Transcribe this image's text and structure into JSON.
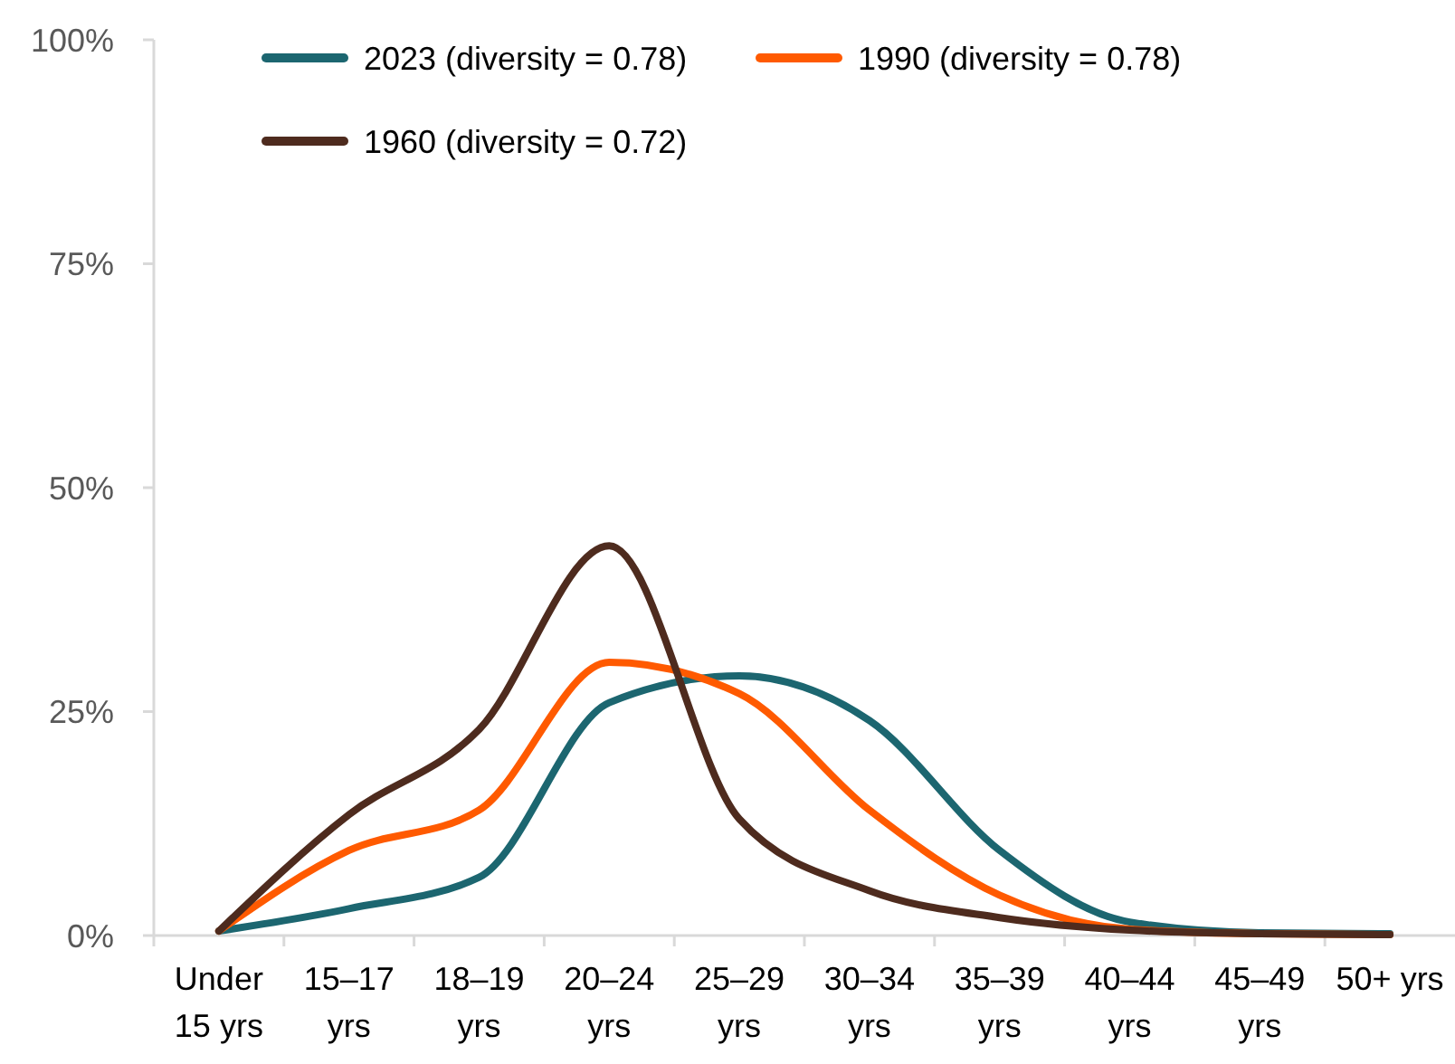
{
  "chart_data": {
    "type": "line",
    "categories": [
      "Under 15 yrs",
      "15–17 yrs",
      "18–19 yrs",
      "20–24 yrs",
      "25–29 yrs",
      "30–34 yrs",
      "35–39 yrs",
      "40–44 yrs",
      "45–49 yrs",
      "50+ yrs"
    ],
    "series": [
      {
        "name": "2023 (diversity = 0.78)",
        "color": "#1c6670",
        "values": [
          0.5,
          3,
          6.5,
          26,
          29,
          24,
          9.5,
          1.5,
          0.3,
          0.2
        ]
      },
      {
        "name": "1990 (diversity = 0.78)",
        "color": "#ff5a00",
        "values": [
          0.5,
          9.5,
          14,
          30.5,
          27,
          14,
          4.5,
          0.7,
          0.2,
          0.1
        ]
      },
      {
        "name": "1960 (diversity = 0.72)",
        "color": "#4e2b1e",
        "values": [
          0.5,
          13.5,
          23,
          43.5,
          13,
          5,
          2,
          0.6,
          0.2,
          0.1
        ]
      }
    ],
    "ylim": [
      0,
      100
    ],
    "yticks": [
      {
        "value": 0,
        "label": "0%"
      },
      {
        "value": 25,
        "label": "25%"
      },
      {
        "value": 50,
        "label": "50%"
      },
      {
        "value": 75,
        "label": "75%"
      },
      {
        "value": 100,
        "label": "100%"
      }
    ],
    "grid": false,
    "legend": "top",
    "marker": "none",
    "line_style": "solid"
  }
}
